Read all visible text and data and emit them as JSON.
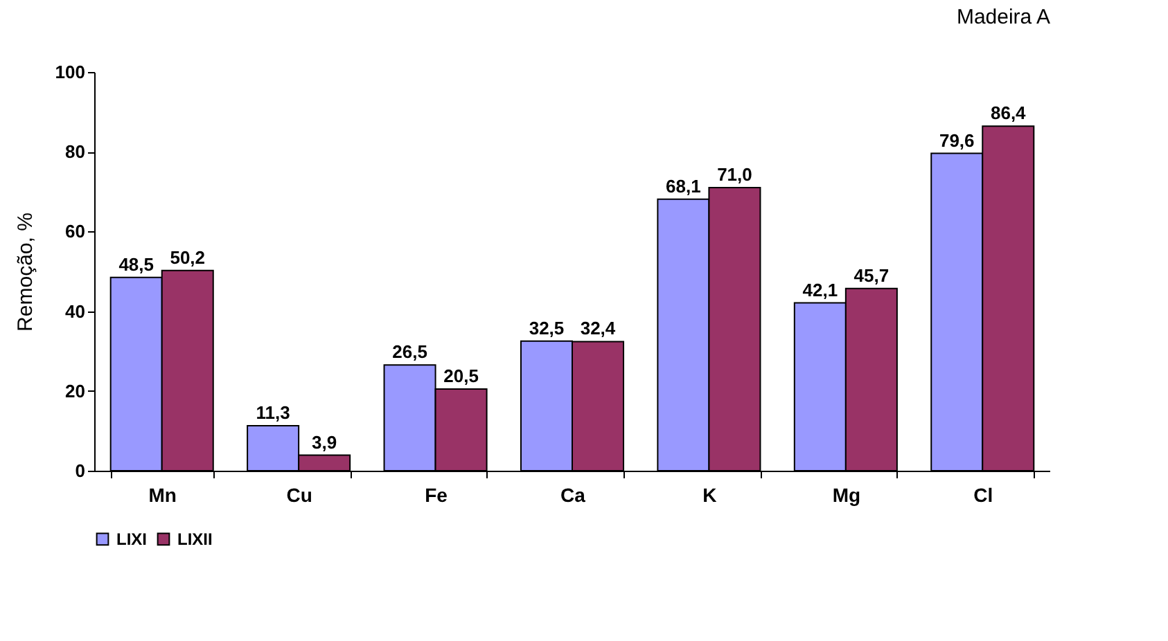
{
  "chart_data": {
    "type": "bar",
    "title": "Madeira A",
    "ylabel": "Remoção, %",
    "categories": [
      "Mn",
      "Cu",
      "Fe",
      "Ca",
      "K",
      "Mg",
      "Cl"
    ],
    "series": [
      {
        "name": "LIXI",
        "color": "#9999ff",
        "values": [
          48.5,
          11.3,
          26.5,
          32.5,
          68.1,
          42.1,
          79.6
        ],
        "value_labels": [
          "48,5",
          "11,3",
          "26,5",
          "32,5",
          "68,1",
          "42,1",
          "79,6"
        ]
      },
      {
        "name": "LIXII",
        "color": "#993366",
        "values": [
          50.2,
          3.9,
          20.5,
          32.4,
          71.0,
          45.7,
          86.4
        ],
        "value_labels": [
          "50,2",
          "3,9",
          "20,5",
          "32,4",
          "71,0",
          "45,7",
          "86,4"
        ]
      }
    ],
    "ylim": [
      0,
      100
    ],
    "yticks": [
      0,
      20,
      40,
      60,
      80,
      100
    ],
    "grid": false,
    "legend": "bottom"
  }
}
